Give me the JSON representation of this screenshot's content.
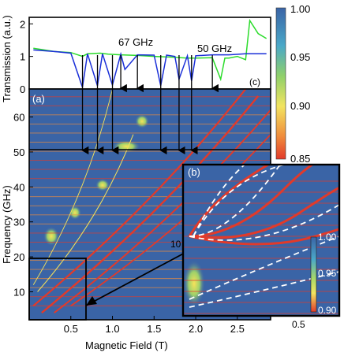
{
  "chart_data": [
    {
      "type": "line",
      "panel": "(c)",
      "ylabel": "Transmission (a.u.)",
      "ylim": [
        0,
        2.2
      ],
      "xlim": [
        0,
        2.9
      ],
      "yticks": [
        0,
        1,
        2
      ],
      "annotations": [
        "67 GHz",
        "50 GHz"
      ],
      "series": [
        {
          "name": "67 GHz",
          "color": "#2bdc2b",
          "x": [
            0.05,
            0.3,
            0.5,
            0.64,
            0.7,
            0.85,
            0.95,
            1.1,
            1.3,
            1.5,
            1.7,
            1.9,
            2.0,
            2.2,
            2.3,
            2.35,
            2.4,
            2.5,
            2.6,
            2.65,
            2.75,
            2.85
          ],
          "y": [
            1.25,
            1.15,
            1.12,
            1.0,
            1.08,
            1.1,
            1.07,
            1.05,
            1.03,
            1.0,
            0.98,
            0.95,
            0.95,
            0.96,
            0.3,
            0.95,
            0.95,
            1.0,
            0.9,
            2.1,
            1.7,
            1.55
          ]
        },
        {
          "name": "50 GHz",
          "color": "#1a2fd8",
          "x": [
            0.05,
            0.3,
            0.5,
            0.64,
            0.7,
            0.82,
            0.88,
            1.0,
            1.1,
            1.15,
            1.3,
            1.5,
            1.58,
            1.65,
            1.75,
            1.8,
            1.9,
            1.95,
            2.0,
            2.2,
            2.4,
            2.6,
            2.85
          ],
          "y": [
            1.2,
            1.15,
            1.1,
            0.05,
            1.08,
            0.1,
            1.08,
            0.12,
            1.07,
            0.6,
            1.05,
            1.04,
            0.1,
            1.04,
            1.0,
            0.3,
            1.02,
            0.25,
            1.02,
            1.05,
            1.05,
            1.08,
            1.08
          ]
        }
      ]
    },
    {
      "type": "heatmap",
      "panel": "(a)",
      "xlabel": "Magnetic Field (T)",
      "ylabel": "Frequency (GHz)",
      "xlim": [
        0,
        2.9
      ],
      "ylim": [
        2,
        68
      ],
      "xticks": [
        0.5,
        1.0,
        1.5,
        2.0,
        2.5
      ],
      "yticks": [
        10,
        20,
        30,
        40,
        50,
        60
      ],
      "colorbar": {
        "min": 0.85,
        "max": 1.0,
        "ticks": [
          "1.00",
          "0.95",
          "0.90",
          "0.85"
        ]
      },
      "cut_lines_ghz": [
        50,
        67
      ],
      "arrow_fields_T": [
        0.64,
        0.82,
        1.0,
        1.58,
        1.8,
        1.95
      ]
    },
    {
      "type": "heatmap",
      "panel": "(b)",
      "inset_of": "(a)",
      "xticks": [
        "0.5"
      ],
      "yticks": [
        "10"
      ],
      "colorbar": {
        "min": 0.9,
        "max": 1.0,
        "ticks": [
          "1.00",
          "0.95",
          "0.90"
        ]
      }
    }
  ],
  "text": {
    "panel_a": "(a)",
    "panel_b": "(b)",
    "panel_c": "(c)",
    "ann_67": "67 GHz",
    "ann_50": "50 GHz",
    "xlabel": "Magnetic Field (T)",
    "ylabel_main": "Frequency (GHz)",
    "ylabel_top": "Transmission (a.u.)"
  },
  "colors": {
    "background_map": "#3a64a6",
    "resonance_red": "#e23a2a",
    "resonance_yellow": "#f6e25a",
    "green_blob": "#9ed16a",
    "line_67": "#2bdc2b",
    "line_50": "#1a2fd8"
  }
}
